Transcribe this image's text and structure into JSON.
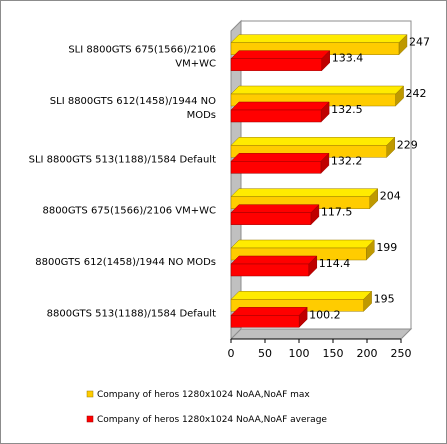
{
  "chart_data": {
    "type": "bar",
    "orientation": "horizontal",
    "style": "3d",
    "categories": [
      [
        "SLI 8800GTS 675(1566)/2106",
        "VM+WC"
      ],
      [
        "SLI 8800GTS 612(1458)/1944 NO",
        "MODs"
      ],
      [
        "SLI 8800GTS 513(1188)/1584 Default"
      ],
      [
        "8800GTS 675(1566)/2106 VM+WC"
      ],
      [
        "8800GTS 612(1458)/1944 NO MODs"
      ],
      [
        "8800GTS 513(1188)/1584 Default"
      ]
    ],
    "series": [
      {
        "name": "Company of heros 1280x1024 NoAA,NoAF max",
        "color": "#ffcc00",
        "values": [
          247,
          242,
          229,
          204,
          199,
          195
        ],
        "labels": [
          "247",
          "242",
          "229",
          "204",
          "199",
          "195"
        ]
      },
      {
        "name": "Company of heros 1280x1024 NoAA,NoAF average",
        "color": "#ff0000",
        "values": [
          133.4,
          132.5,
          132.2,
          117.5,
          114.4,
          100.2
        ],
        "labels": [
          "133.4",
          "132.5",
          "132.2",
          "117.5",
          "114.4",
          "100.2"
        ]
      }
    ],
    "xlim": [
      0,
      250
    ],
    "xticks": [
      0,
      50,
      100,
      150,
      200,
      250
    ],
    "grid": false,
    "legend": "bottom"
  }
}
